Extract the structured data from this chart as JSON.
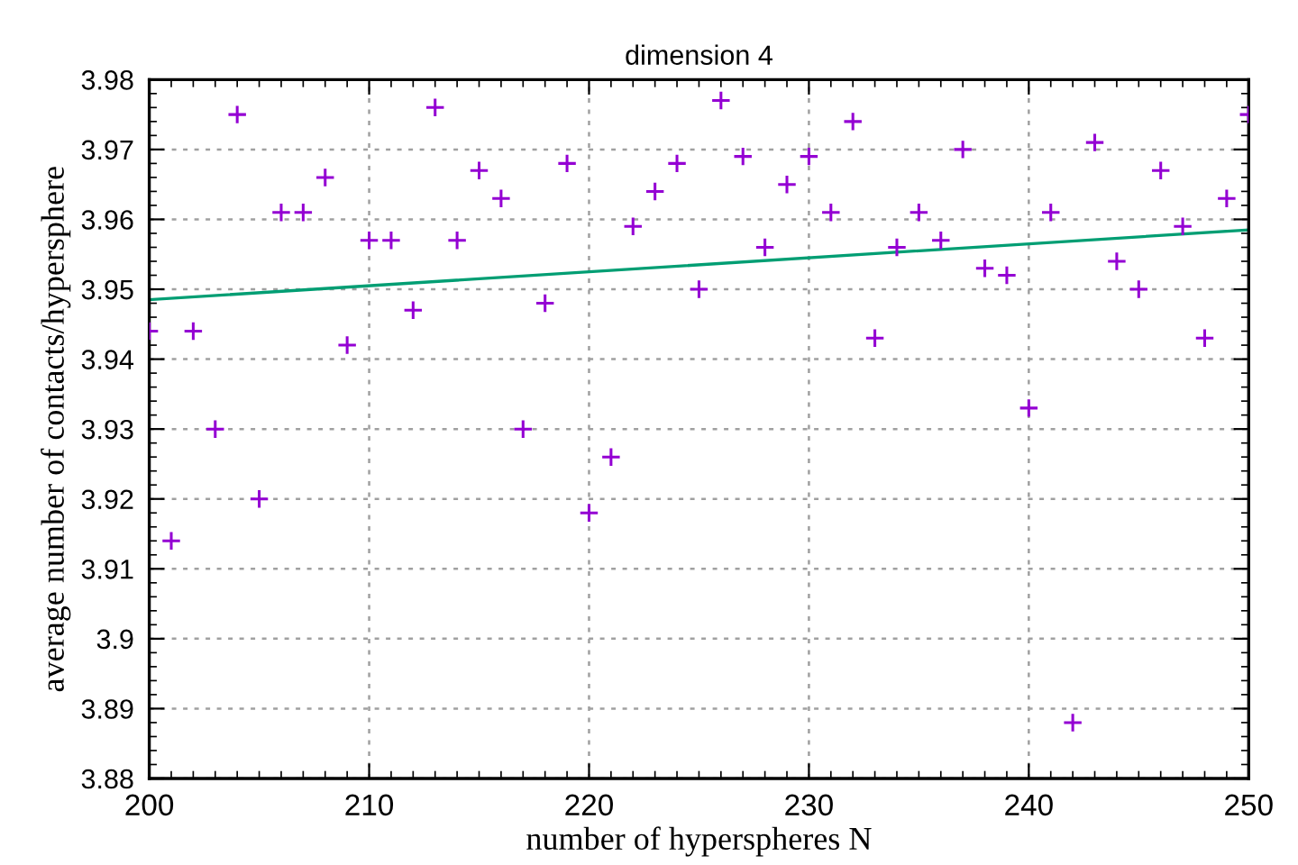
{
  "chart_data": {
    "type": "scatter",
    "title": "dimension 4",
    "xlabel": "number of hyperspheres N",
    "ylabel": "average number of contacts/hypersphere",
    "x": [
      200,
      201,
      202,
      203,
      204,
      205,
      206,
      207,
      208,
      209,
      210,
      211,
      212,
      213,
      214,
      215,
      216,
      217,
      218,
      219,
      220,
      221,
      222,
      223,
      224,
      225,
      226,
      227,
      228,
      229,
      230,
      231,
      232,
      233,
      234,
      235,
      236,
      237,
      238,
      239,
      240,
      241,
      242,
      243,
      244,
      245,
      246,
      247,
      248,
      249,
      250
    ],
    "series": [
      {
        "color": "#9400d3",
        "marker": "cross",
        "values": [
          3.944,
          3.914,
          3.944,
          3.93,
          3.975,
          3.92,
          3.961,
          3.961,
          3.966,
          3.942,
          3.957,
          3.957,
          3.947,
          3.976,
          3.957,
          3.967,
          3.963,
          3.93,
          3.948,
          3.968,
          3.918,
          3.926,
          3.959,
          3.964,
          3.968,
          3.95,
          3.977,
          3.969,
          3.956,
          3.965,
          3.969,
          3.961,
          3.974,
          3.943,
          3.956,
          3.961,
          3.957,
          3.97,
          3.953,
          3.952,
          3.933,
          3.961,
          3.888,
          3.971,
          3.954,
          3.95,
          3.967,
          3.959,
          3.943,
          3.963,
          3.975
        ]
      },
      {
        "type": "line",
        "color": "#009e73",
        "x": [
          200,
          250
        ],
        "values": [
          3.9485,
          3.9585
        ]
      }
    ],
    "xlim": [
      200,
      250
    ],
    "ylim": [
      3.88,
      3.98
    ],
    "xticks": [
      200,
      210,
      220,
      230,
      240,
      250
    ],
    "yticks": [
      3.88,
      3.89,
      3.9,
      3.91,
      3.92,
      3.93,
      3.94,
      3.95,
      3.96,
      3.97,
      3.98
    ],
    "grid": true,
    "legend": false
  }
}
